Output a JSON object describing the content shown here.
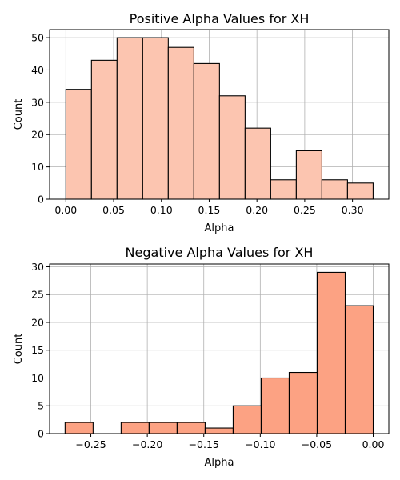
{
  "chart_data": [
    {
      "type": "bar",
      "title": "Positive Alpha Values for XH",
      "xlabel": "Alpha",
      "ylabel": "Count",
      "bar_color": "#fcc5b0",
      "grid": true,
      "xlim": [
        -0.017,
        0.338
      ],
      "ylim": [
        0,
        52.5
      ],
      "xticks": [
        {
          "value": 0.0,
          "label": "0.00"
        },
        {
          "value": 0.05,
          "label": "0.05"
        },
        {
          "value": 0.1,
          "label": "0.10"
        },
        {
          "value": 0.15,
          "label": "0.15"
        },
        {
          "value": 0.2,
          "label": "0.20"
        },
        {
          "value": 0.25,
          "label": "0.25"
        },
        {
          "value": 0.3,
          "label": "0.30"
        }
      ],
      "yticks": [
        {
          "value": 0,
          "label": "0"
        },
        {
          "value": 10,
          "label": "10"
        },
        {
          "value": 20,
          "label": "20"
        },
        {
          "value": 30,
          "label": "30"
        },
        {
          "value": 40,
          "label": "40"
        },
        {
          "value": 50,
          "label": "50"
        }
      ],
      "bins": [
        {
          "x0": 0.0,
          "x1": 0.0268,
          "count": 34
        },
        {
          "x0": 0.0268,
          "x1": 0.0536,
          "count": 43
        },
        {
          "x0": 0.0536,
          "x1": 0.0804,
          "count": 50
        },
        {
          "x0": 0.0804,
          "x1": 0.1072,
          "count": 50
        },
        {
          "x0": 0.1072,
          "x1": 0.134,
          "count": 47
        },
        {
          "x0": 0.134,
          "x1": 0.1608,
          "count": 42
        },
        {
          "x0": 0.1608,
          "x1": 0.1876,
          "count": 32
        },
        {
          "x0": 0.1876,
          "x1": 0.2144,
          "count": 22
        },
        {
          "x0": 0.2144,
          "x1": 0.2412,
          "count": 6
        },
        {
          "x0": 0.2412,
          "x1": 0.268,
          "count": 15
        },
        {
          "x0": 0.268,
          "x1": 0.2948,
          "count": 6
        },
        {
          "x0": 0.2948,
          "x1": 0.3216,
          "count": 5
        }
      ]
    },
    {
      "type": "bar",
      "title": "Negative Alpha Values for XH",
      "xlabel": "Alpha",
      "ylabel": "Count",
      "bar_color": "#fca283",
      "grid": true,
      "xlim": [
        -0.2865,
        0.0138
      ],
      "ylim": [
        0,
        30.5
      ],
      "xticks": [
        {
          "value": -0.25,
          "label": "−0.25"
        },
        {
          "value": -0.2,
          "label": "−0.20"
        },
        {
          "value": -0.15,
          "label": "−0.15"
        },
        {
          "value": -0.1,
          "label": "−0.10"
        },
        {
          "value": -0.05,
          "label": "−0.05"
        },
        {
          "value": 0.0,
          "label": "0.00"
        }
      ],
      "yticks": [
        {
          "value": 0,
          "label": "0"
        },
        {
          "value": 5,
          "label": "5"
        },
        {
          "value": 10,
          "label": "10"
        },
        {
          "value": 15,
          "label": "15"
        },
        {
          "value": 20,
          "label": "20"
        },
        {
          "value": 25,
          "label": "25"
        },
        {
          "value": 30,
          "label": "30"
        }
      ],
      "bins": [
        {
          "x0": -0.2728,
          "x1": -0.248,
          "count": 2
        },
        {
          "x0": -0.248,
          "x1": -0.2232,
          "count": 0
        },
        {
          "x0": -0.2232,
          "x1": -0.1984,
          "count": 2
        },
        {
          "x0": -0.1984,
          "x1": -0.1736,
          "count": 2
        },
        {
          "x0": -0.1736,
          "x1": -0.1488,
          "count": 2
        },
        {
          "x0": -0.1488,
          "x1": -0.124,
          "count": 1
        },
        {
          "x0": -0.124,
          "x1": -0.0992,
          "count": 5
        },
        {
          "x0": -0.0992,
          "x1": -0.0744,
          "count": 10
        },
        {
          "x0": -0.0744,
          "x1": -0.0496,
          "count": 11
        },
        {
          "x0": -0.0496,
          "x1": -0.0248,
          "count": 29
        },
        {
          "x0": -0.0248,
          "x1": 0.0,
          "count": 23
        }
      ]
    }
  ]
}
